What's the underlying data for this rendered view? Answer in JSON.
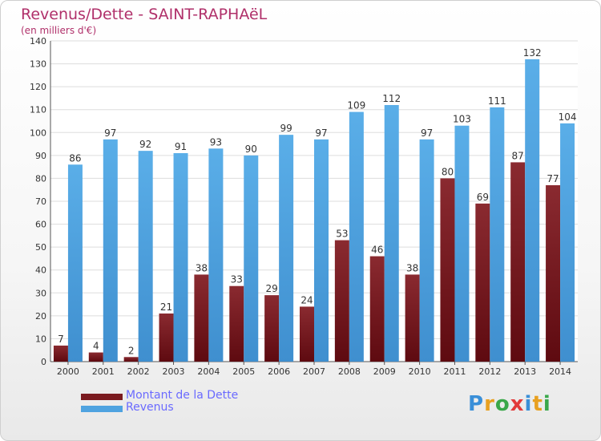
{
  "title": "Revenus/Dette - SAINT-RAPHAëL",
  "subtitle": "(en milliers d'€)",
  "logo_text": "Proxiti",
  "colors": {
    "dette": "#7a1a1f",
    "revenus": "#4fa3e0",
    "title": "#b0306a",
    "legend_text": "#6a6aff"
  },
  "chart_data": {
    "type": "bar",
    "categories": [
      "2000",
      "2001",
      "2002",
      "2003",
      "2004",
      "2005",
      "2006",
      "2007",
      "2008",
      "2009",
      "2010",
      "2011",
      "2012",
      "2013",
      "2014"
    ],
    "series": [
      {
        "name": "Montant de la Dette",
        "values": [
          7,
          4,
          2,
          21,
          38,
          33,
          29,
          24,
          53,
          46,
          38,
          80,
          69,
          87,
          77
        ]
      },
      {
        "name": "Revenus",
        "values": [
          86,
          97,
          92,
          91,
          93,
          90,
          99,
          97,
          109,
          112,
          97,
          103,
          111,
          132,
          104
        ]
      }
    ],
    "ylim": [
      0,
      140
    ],
    "yticks": [
      0,
      10,
      20,
      30,
      40,
      50,
      60,
      70,
      80,
      90,
      100,
      110,
      120,
      130,
      140
    ],
    "grid": true,
    "legend": "bottom-left"
  }
}
